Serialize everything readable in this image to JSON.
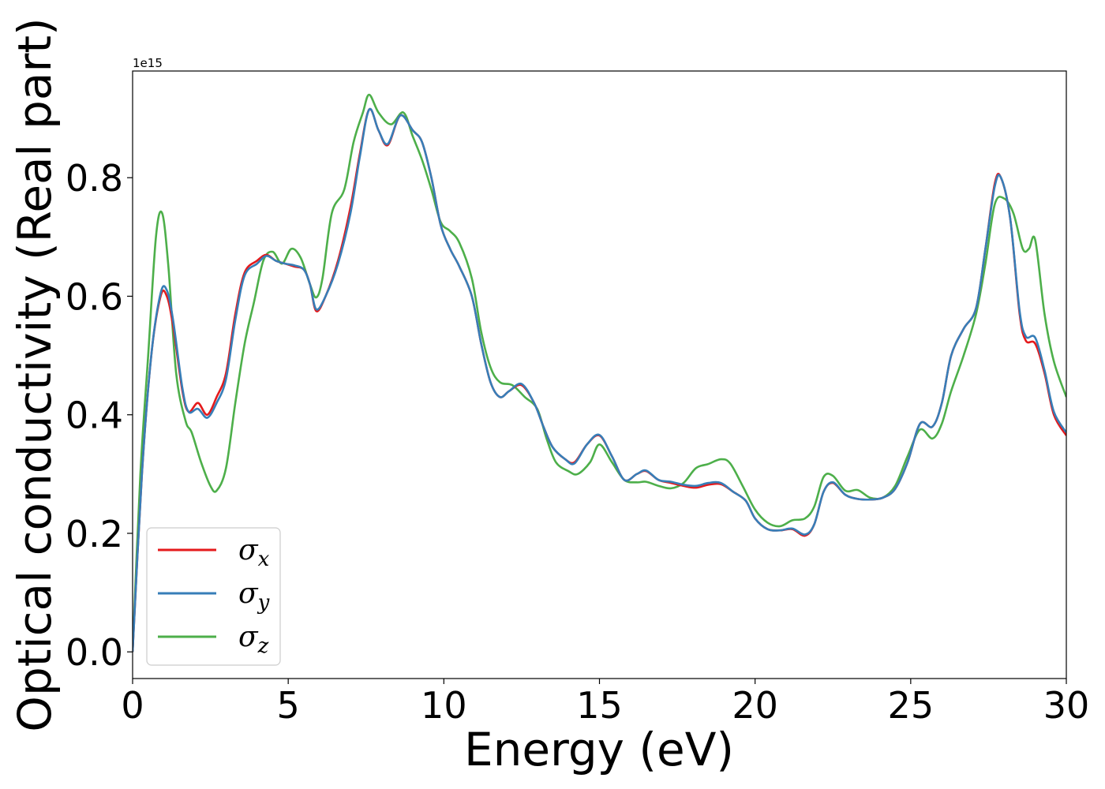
{
  "chart_data": {
    "type": "line",
    "xlabel": "Energy (eV)",
    "ylabel": "Optical conductivity (Real part)",
    "y_offset_label": "1e15",
    "xlim": [
      0,
      30
    ],
    "ylim": [
      -0.045,
      0.98
    ],
    "x_ticks": [
      0,
      5,
      10,
      15,
      20,
      25,
      30
    ],
    "x_tick_labels": [
      "0",
      "5",
      "10",
      "15",
      "20",
      "25",
      "30"
    ],
    "y_ticks": [
      0.0,
      0.2,
      0.4,
      0.6,
      0.8
    ],
    "y_tick_labels": [
      "0.0",
      "0.2",
      "0.4",
      "0.6",
      "0.8"
    ],
    "grid": false,
    "legend_position": "lower-left",
    "series": [
      {
        "name": "σx",
        "symbol": "σ",
        "subscript": "x",
        "color": "#e41a1c",
        "points": [
          [
            0,
            0
          ],
          [
            0.3,
            0.3
          ],
          [
            0.6,
            0.5
          ],
          [
            0.9,
            0.6
          ],
          [
            1.1,
            0.6
          ],
          [
            1.3,
            0.55
          ],
          [
            1.6,
            0.44
          ],
          [
            1.8,
            0.405
          ],
          [
            2.1,
            0.42
          ],
          [
            2.4,
            0.4
          ],
          [
            2.7,
            0.43
          ],
          [
            3.0,
            0.47
          ],
          [
            3.3,
            0.57
          ],
          [
            3.6,
            0.64
          ],
          [
            4.0,
            0.66
          ],
          [
            4.3,
            0.67
          ],
          [
            4.6,
            0.66
          ],
          [
            4.9,
            0.655
          ],
          [
            5.2,
            0.65
          ],
          [
            5.5,
            0.645
          ],
          [
            5.7,
            0.62
          ],
          [
            5.9,
            0.575
          ],
          [
            6.2,
            0.6
          ],
          [
            6.6,
            0.66
          ],
          [
            7.0,
            0.75
          ],
          [
            7.3,
            0.84
          ],
          [
            7.6,
            0.915
          ],
          [
            7.9,
            0.88
          ],
          [
            8.2,
            0.855
          ],
          [
            8.6,
            0.905
          ],
          [
            9.0,
            0.88
          ],
          [
            9.3,
            0.86
          ],
          [
            9.6,
            0.8
          ],
          [
            9.9,
            0.72
          ],
          [
            10.2,
            0.68
          ],
          [
            10.5,
            0.65
          ],
          [
            10.9,
            0.6
          ],
          [
            11.2,
            0.52
          ],
          [
            11.5,
            0.455
          ],
          [
            11.8,
            0.43
          ],
          [
            12.1,
            0.44
          ],
          [
            12.5,
            0.45
          ],
          [
            12.9,
            0.42
          ],
          [
            13.2,
            0.38
          ],
          [
            13.5,
            0.345
          ],
          [
            13.9,
            0.325
          ],
          [
            14.2,
            0.32
          ],
          [
            14.6,
            0.35
          ],
          [
            15.0,
            0.365
          ],
          [
            15.4,
            0.33
          ],
          [
            15.8,
            0.29
          ],
          [
            16.2,
            0.3
          ],
          [
            16.5,
            0.305
          ],
          [
            16.9,
            0.29
          ],
          [
            17.3,
            0.285
          ],
          [
            17.7,
            0.28
          ],
          [
            18.1,
            0.277
          ],
          [
            18.5,
            0.282
          ],
          [
            18.9,
            0.283
          ],
          [
            19.3,
            0.27
          ],
          [
            19.7,
            0.255
          ],
          [
            20.0,
            0.225
          ],
          [
            20.4,
            0.207
          ],
          [
            20.8,
            0.205
          ],
          [
            21.2,
            0.207
          ],
          [
            21.6,
            0.196
          ],
          [
            21.9,
            0.215
          ],
          [
            22.2,
            0.27
          ],
          [
            22.5,
            0.285
          ],
          [
            22.9,
            0.265
          ],
          [
            23.3,
            0.258
          ],
          [
            23.7,
            0.257
          ],
          [
            24.1,
            0.26
          ],
          [
            24.5,
            0.275
          ],
          [
            24.9,
            0.32
          ],
          [
            25.3,
            0.385
          ],
          [
            25.7,
            0.38
          ],
          [
            26.0,
            0.42
          ],
          [
            26.3,
            0.5
          ],
          [
            26.7,
            0.545
          ],
          [
            27.1,
            0.58
          ],
          [
            27.4,
            0.68
          ],
          [
            27.7,
            0.79
          ],
          [
            27.9,
            0.8
          ],
          [
            28.2,
            0.73
          ],
          [
            28.5,
            0.57
          ],
          [
            28.7,
            0.525
          ],
          [
            29.0,
            0.52
          ],
          [
            29.3,
            0.47
          ],
          [
            29.6,
            0.4
          ],
          [
            30.0,
            0.365
          ]
        ]
      },
      {
        "name": "σy",
        "symbol": "σ",
        "subscript": "y",
        "color": "#377eb8",
        "points": [
          [
            0,
            0
          ],
          [
            0.3,
            0.3
          ],
          [
            0.6,
            0.5
          ],
          [
            0.9,
            0.605
          ],
          [
            1.1,
            0.61
          ],
          [
            1.3,
            0.56
          ],
          [
            1.6,
            0.445
          ],
          [
            1.8,
            0.405
          ],
          [
            2.1,
            0.41
          ],
          [
            2.4,
            0.395
          ],
          [
            2.7,
            0.42
          ],
          [
            3.0,
            0.46
          ],
          [
            3.3,
            0.56
          ],
          [
            3.6,
            0.635
          ],
          [
            4.0,
            0.655
          ],
          [
            4.3,
            0.668
          ],
          [
            4.6,
            0.66
          ],
          [
            4.9,
            0.655
          ],
          [
            5.2,
            0.652
          ],
          [
            5.5,
            0.645
          ],
          [
            5.7,
            0.62
          ],
          [
            5.9,
            0.578
          ],
          [
            6.2,
            0.6
          ],
          [
            6.6,
            0.655
          ],
          [
            7.0,
            0.74
          ],
          [
            7.3,
            0.835
          ],
          [
            7.6,
            0.915
          ],
          [
            7.9,
            0.88
          ],
          [
            8.2,
            0.857
          ],
          [
            8.6,
            0.905
          ],
          [
            9.0,
            0.88
          ],
          [
            9.3,
            0.86
          ],
          [
            9.6,
            0.8
          ],
          [
            9.9,
            0.72
          ],
          [
            10.2,
            0.68
          ],
          [
            10.5,
            0.65
          ],
          [
            10.9,
            0.6
          ],
          [
            11.2,
            0.52
          ],
          [
            11.5,
            0.455
          ],
          [
            11.8,
            0.43
          ],
          [
            12.1,
            0.44
          ],
          [
            12.5,
            0.452
          ],
          [
            12.9,
            0.42
          ],
          [
            13.2,
            0.38
          ],
          [
            13.5,
            0.345
          ],
          [
            13.9,
            0.325
          ],
          [
            14.2,
            0.318
          ],
          [
            14.6,
            0.35
          ],
          [
            15.0,
            0.366
          ],
          [
            15.4,
            0.33
          ],
          [
            15.8,
            0.29
          ],
          [
            16.2,
            0.3
          ],
          [
            16.5,
            0.306
          ],
          [
            16.9,
            0.29
          ],
          [
            17.3,
            0.287
          ],
          [
            17.7,
            0.282
          ],
          [
            18.1,
            0.28
          ],
          [
            18.5,
            0.285
          ],
          [
            18.9,
            0.285
          ],
          [
            19.3,
            0.27
          ],
          [
            19.7,
            0.255
          ],
          [
            20.0,
            0.225
          ],
          [
            20.4,
            0.207
          ],
          [
            20.8,
            0.205
          ],
          [
            21.2,
            0.208
          ],
          [
            21.6,
            0.198
          ],
          [
            21.9,
            0.215
          ],
          [
            22.2,
            0.27
          ],
          [
            22.5,
            0.286
          ],
          [
            22.9,
            0.265
          ],
          [
            23.3,
            0.258
          ],
          [
            23.7,
            0.257
          ],
          [
            24.1,
            0.26
          ],
          [
            24.5,
            0.275
          ],
          [
            24.9,
            0.32
          ],
          [
            25.3,
            0.385
          ],
          [
            25.7,
            0.38
          ],
          [
            26.0,
            0.42
          ],
          [
            26.3,
            0.5
          ],
          [
            26.7,
            0.545
          ],
          [
            27.1,
            0.58
          ],
          [
            27.4,
            0.68
          ],
          [
            27.7,
            0.785
          ],
          [
            27.9,
            0.8
          ],
          [
            28.2,
            0.73
          ],
          [
            28.5,
            0.575
          ],
          [
            28.7,
            0.532
          ],
          [
            29.0,
            0.53
          ],
          [
            29.3,
            0.475
          ],
          [
            29.6,
            0.405
          ],
          [
            30.0,
            0.37
          ]
        ]
      },
      {
        "name": "σz",
        "symbol": "σ",
        "subscript": "z",
        "color": "#4daf4a",
        "points": [
          [
            0,
            0
          ],
          [
            0.25,
            0.3
          ],
          [
            0.5,
            0.5
          ],
          [
            0.75,
            0.7
          ],
          [
            0.95,
            0.74
          ],
          [
            1.15,
            0.65
          ],
          [
            1.4,
            0.47
          ],
          [
            1.7,
            0.39
          ],
          [
            1.9,
            0.37
          ],
          [
            2.2,
            0.32
          ],
          [
            2.5,
            0.28
          ],
          [
            2.7,
            0.272
          ],
          [
            3.0,
            0.31
          ],
          [
            3.3,
            0.42
          ],
          [
            3.6,
            0.52
          ],
          [
            3.9,
            0.59
          ],
          [
            4.2,
            0.66
          ],
          [
            4.5,
            0.675
          ],
          [
            4.8,
            0.655
          ],
          [
            5.1,
            0.68
          ],
          [
            5.4,
            0.665
          ],
          [
            5.7,
            0.62
          ],
          [
            5.9,
            0.598
          ],
          [
            6.1,
            0.63
          ],
          [
            6.4,
            0.74
          ],
          [
            6.8,
            0.78
          ],
          [
            7.1,
            0.86
          ],
          [
            7.4,
            0.91
          ],
          [
            7.6,
            0.94
          ],
          [
            7.9,
            0.91
          ],
          [
            8.3,
            0.89
          ],
          [
            8.7,
            0.91
          ],
          [
            9.0,
            0.87
          ],
          [
            9.3,
            0.83
          ],
          [
            9.6,
            0.78
          ],
          [
            9.9,
            0.725
          ],
          [
            10.2,
            0.71
          ],
          [
            10.5,
            0.69
          ],
          [
            10.9,
            0.63
          ],
          [
            11.2,
            0.54
          ],
          [
            11.5,
            0.48
          ],
          [
            11.8,
            0.455
          ],
          [
            12.2,
            0.45
          ],
          [
            12.6,
            0.43
          ],
          [
            13.0,
            0.41
          ],
          [
            13.3,
            0.36
          ],
          [
            13.6,
            0.32
          ],
          [
            14.0,
            0.305
          ],
          [
            14.3,
            0.3
          ],
          [
            14.7,
            0.32
          ],
          [
            15.0,
            0.35
          ],
          [
            15.4,
            0.32
          ],
          [
            15.8,
            0.29
          ],
          [
            16.2,
            0.286
          ],
          [
            16.5,
            0.287
          ],
          [
            16.9,
            0.28
          ],
          [
            17.3,
            0.276
          ],
          [
            17.7,
            0.285
          ],
          [
            18.1,
            0.31
          ],
          [
            18.5,
            0.317
          ],
          [
            18.9,
            0.325
          ],
          [
            19.2,
            0.318
          ],
          [
            19.6,
            0.28
          ],
          [
            20.0,
            0.24
          ],
          [
            20.4,
            0.218
          ],
          [
            20.8,
            0.212
          ],
          [
            21.2,
            0.222
          ],
          [
            21.6,
            0.225
          ],
          [
            21.9,
            0.245
          ],
          [
            22.2,
            0.295
          ],
          [
            22.5,
            0.297
          ],
          [
            22.9,
            0.272
          ],
          [
            23.3,
            0.273
          ],
          [
            23.7,
            0.26
          ],
          [
            24.1,
            0.26
          ],
          [
            24.5,
            0.28
          ],
          [
            24.9,
            0.33
          ],
          [
            25.3,
            0.375
          ],
          [
            25.7,
            0.36
          ],
          [
            26.0,
            0.385
          ],
          [
            26.3,
            0.44
          ],
          [
            26.7,
            0.5
          ],
          [
            27.1,
            0.57
          ],
          [
            27.4,
            0.655
          ],
          [
            27.7,
            0.755
          ],
          [
            28.0,
            0.765
          ],
          [
            28.3,
            0.74
          ],
          [
            28.6,
            0.68
          ],
          [
            28.8,
            0.68
          ],
          [
            29.0,
            0.695
          ],
          [
            29.3,
            0.57
          ],
          [
            29.6,
            0.49
          ],
          [
            30.0,
            0.43
          ]
        ]
      }
    ]
  }
}
